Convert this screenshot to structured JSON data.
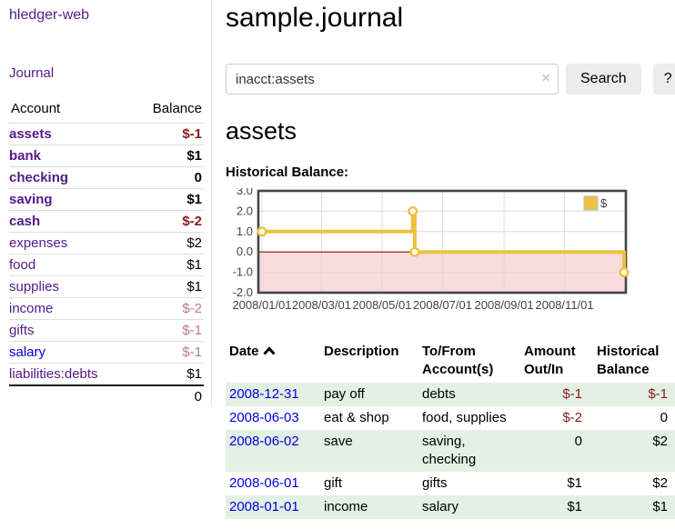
{
  "app": {
    "title": "hledger-web"
  },
  "sidebar": {
    "journal_link": "Journal",
    "table": {
      "account_header": "Account",
      "balance_header": "Balance",
      "rows": [
        {
          "name": "assets",
          "level": 1,
          "bold": true,
          "balance": "$-1",
          "negative": "strong"
        },
        {
          "name": "bank",
          "level": 2,
          "bold": true,
          "balance": "$1"
        },
        {
          "name": "checking",
          "level": 3,
          "bold": true,
          "balance": "0"
        },
        {
          "name": "saving",
          "level": 3,
          "bold": true,
          "balance": "$1"
        },
        {
          "name": "cash",
          "level": 2,
          "bold": true,
          "balance": "$-2",
          "negative": "strong"
        },
        {
          "name": "expenses",
          "level": 1,
          "bold": false,
          "balance": "$2"
        },
        {
          "name": "food",
          "level": 2,
          "bold": false,
          "balance": "$1"
        },
        {
          "name": "supplies",
          "level": 2,
          "bold": false,
          "balance": "$1"
        },
        {
          "name": "income",
          "level": 1,
          "bold": false,
          "balance": "$-2",
          "negative": "muted"
        },
        {
          "name": "gifts",
          "level": 2,
          "bold": false,
          "balance": "$-1",
          "negative": "muted"
        },
        {
          "name": "salary",
          "level": 2,
          "bold": false,
          "balance": "$-1",
          "negative": "muted",
          "link": "blue"
        },
        {
          "name": "liabilities:debts",
          "level": 1,
          "bold": false,
          "balance": "$1"
        }
      ],
      "total": "0"
    }
  },
  "main": {
    "title": "sample.journal",
    "search": {
      "value": "inacct:assets",
      "clear_icon": "×",
      "button_label": "Search",
      "help_label": "?"
    },
    "account_heading": "assets",
    "chart_label": "Historical Balance:"
  },
  "chart_data": {
    "type": "line",
    "step": true,
    "title": "Historical Balance",
    "series": [
      {
        "name": "$",
        "color": "#edc240",
        "points": [
          [
            "2008-01-01",
            1
          ],
          [
            "2008-06-01",
            2
          ],
          [
            "2008-06-03",
            0
          ],
          [
            "2008-12-31",
            -1
          ]
        ]
      }
    ],
    "x_ticks": [
      "2008/01/01",
      "2008/03/01",
      "2008/05/01",
      "2008/07/01",
      "2008/09/01",
      "2008/11/01"
    ],
    "y_ticks": [
      3.0,
      2.0,
      1.0,
      0.0,
      -1.0,
      -2.0
    ],
    "ylim": [
      -2,
      3
    ],
    "xlim": [
      "2008-01-01",
      "2008-12-31"
    ],
    "grid": true,
    "legend_position": "top-right",
    "legend_label": "$",
    "negative_region_color": "#f9dcdc",
    "zero_line_color": "#9e0000",
    "border_color": "#454545"
  },
  "register": {
    "headers": {
      "date": "Date",
      "description": "Description",
      "accounts": "To/From Account(s)",
      "amount": "Amount Out/In",
      "balance": "Historical Balance"
    },
    "rows": [
      {
        "date": "2008-12-31",
        "description": "pay off",
        "accounts": "debts",
        "amount": "$-1",
        "amount_negative": true,
        "balance": "$-1",
        "balance_negative": true
      },
      {
        "date": "2008-06-03",
        "description": "eat & shop",
        "accounts": "food, supplies",
        "amount": "$-2",
        "amount_negative": true,
        "balance": "0",
        "balance_negative": false
      },
      {
        "date": "2008-06-02",
        "description": "save",
        "accounts": "saving, checking",
        "amount": "0",
        "amount_negative": false,
        "balance": "$2",
        "balance_negative": false
      },
      {
        "date": "2008-06-01",
        "description": "gift",
        "accounts": "gifts",
        "amount": "$1",
        "amount_negative": false,
        "balance": "$2",
        "balance_negative": false
      },
      {
        "date": "2008-01-01",
        "description": "income",
        "accounts": "salary",
        "amount": "$1",
        "amount_negative": false,
        "balance": "$1",
        "balance_negative": false
      }
    ]
  },
  "colors": {
    "account_link_purple": "#551A8B",
    "date_link_blue": "#0000e0",
    "negative_strong": "#8b1a1a",
    "negative_muted": "#bd7c7c",
    "chart_line_gold": "#edc240",
    "row_stripe_green": "#e3f0e3"
  }
}
